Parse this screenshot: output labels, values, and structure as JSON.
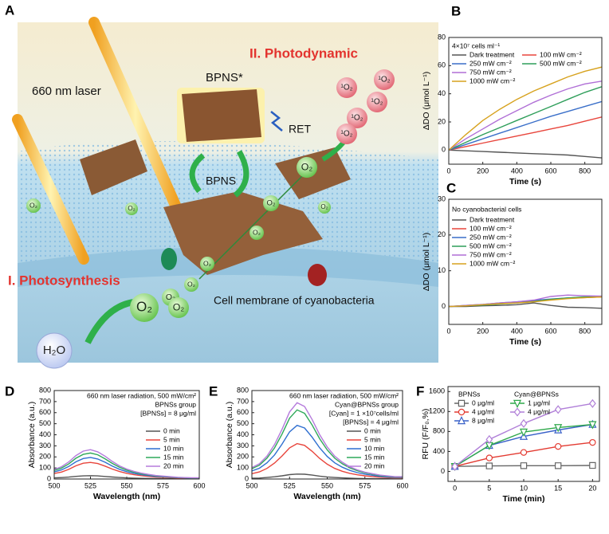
{
  "illustration": {
    "panel": "A",
    "title_photodynamic": "II. Photodynamic",
    "laser": "660 nm laser",
    "bpns_excited": "BPNS*",
    "ret": "RET",
    "bpns": "BPNS",
    "title_photosynthesis": "I. Photosynthesis",
    "membrane": "Cell membrane of cyanobacteria",
    "water": "H₂O",
    "oxygen": [
      "O₂",
      "O₂",
      "O₂",
      "O₂",
      "O₂",
      "O₂",
      "O₂",
      "O₂",
      "O₂",
      "O₂",
      "O₂"
    ],
    "singlet_oxygen": [
      "¹O₂",
      "¹O₂",
      "¹O₂",
      "¹O₂",
      "¹O₂"
    ]
  },
  "chart_data": [
    {
      "type": "line",
      "panel": "B",
      "xlabel": "Time (s)",
      "ylabel": "ΔDO (μmol L⁻¹)",
      "annotations": [
        "4×10⁷ cells ml⁻¹"
      ],
      "x": [
        0,
        100,
        200,
        300,
        400,
        500,
        600,
        700,
        800,
        900
      ],
      "xlim": [
        0,
        900
      ],
      "xticks": [
        0,
        200,
        400,
        600,
        800
      ],
      "ylim": [
        -10,
        80
      ],
      "yticks": [
        0,
        20,
        40,
        60,
        80
      ],
      "series": [
        {
          "name": "Dark treatment",
          "color": "#555555",
          "values": [
            0,
            -0.5,
            -1,
            -1.5,
            -2,
            -2.5,
            -3,
            -3.5,
            -4.5,
            -5.5
          ]
        },
        {
          "name": "100 mW cm⁻²",
          "color": "#e8453c",
          "values": [
            0,
            2.5,
            5,
            7.5,
            10,
            12.5,
            15,
            17.5,
            20.5,
            23.5
          ]
        },
        {
          "name": "250 mW cm⁻²",
          "color": "#3a6fc9",
          "values": [
            0,
            4,
            8,
            12,
            16,
            20,
            24,
            27.5,
            31,
            34.5
          ]
        },
        {
          "name": "500 mW cm⁻²",
          "color": "#2e9e5a",
          "values": [
            0,
            5.5,
            11,
            16,
            21,
            26,
            31,
            36,
            41,
            45
          ]
        },
        {
          "name": "750 mW cm⁻²",
          "color": "#b06fd6",
          "values": [
            0,
            8,
            15,
            22,
            28,
            34,
            39,
            43.5,
            47,
            49
          ]
        },
        {
          "name": "1000 mW cm⁻²",
          "color": "#d7a21e",
          "values": [
            0,
            11,
            21,
            29,
            36,
            42,
            47,
            52,
            56,
            59
          ]
        }
      ]
    },
    {
      "type": "line",
      "panel": "C",
      "xlabel": "Time (s)",
      "ylabel": "ΔDO (μmol L⁻¹)",
      "annotations": [
        "No cyanobacterial cells"
      ],
      "x": [
        0,
        100,
        200,
        300,
        400,
        500,
        600,
        700,
        800,
        900
      ],
      "xlim": [
        0,
        900
      ],
      "xticks": [
        0,
        200,
        400,
        600,
        800
      ],
      "ylim": [
        -5,
        30
      ],
      "yticks": [
        0,
        10,
        20,
        30
      ],
      "series": [
        {
          "name": "Dark treatment",
          "color": "#555555",
          "values": [
            0,
            0,
            0.2,
            0.3,
            0.5,
            1,
            0.3,
            -0.2,
            -0.3,
            -0.5
          ]
        },
        {
          "name": "100 mW cm⁻²",
          "color": "#e8453c",
          "values": [
            0,
            0.2,
            0.5,
            0.8,
            1.2,
            1.5,
            2,
            2.3,
            2.5,
            2.7
          ]
        },
        {
          "name": "250 mW cm⁻²",
          "color": "#3a6fc9",
          "values": [
            0,
            0.3,
            0.6,
            1,
            1.3,
            1.7,
            2.1,
            2.4,
            2.6,
            2.8
          ]
        },
        {
          "name": "500 mW cm⁻²",
          "color": "#2e9e5a",
          "values": [
            0,
            0.2,
            0.4,
            0.7,
            1,
            1.4,
            2,
            2.4,
            2.7,
            2.9
          ]
        },
        {
          "name": "750 mW cm⁻²",
          "color": "#b06fd6",
          "values": [
            0,
            0.3,
            0.6,
            1,
            1.3,
            1.8,
            2.8,
            3.2,
            3,
            2.9
          ]
        },
        {
          "name": "1000 mW cm⁻²",
          "color": "#d7a21e",
          "values": [
            0,
            0.2,
            0.5,
            0.8,
            1,
            1.3,
            1.8,
            2.2,
            2.5,
            2.7
          ]
        }
      ]
    },
    {
      "type": "line",
      "panel": "D",
      "xlabel": "Wavelength (nm)",
      "ylabel": "Absorbance (a.u.)",
      "annotations": [
        "660 nm laser radiation, 500 mW/cm²",
        "BPNSs group",
        "[BPNSs] = 8 μg/ml"
      ],
      "x": [
        500,
        505,
        510,
        515,
        520,
        525,
        530,
        535,
        540,
        545,
        550,
        555,
        560,
        565,
        570,
        575,
        580,
        585,
        590,
        595,
        600
      ],
      "xlim": [
        500,
        600
      ],
      "xticks": [
        500,
        525,
        550,
        575,
        600
      ],
      "ylim": [
        0,
        800
      ],
      "yticks": [
        0,
        100,
        200,
        300,
        400,
        500,
        600,
        700,
        800
      ],
      "series": [
        {
          "name": "0 min",
          "color": "#555555",
          "values": [
            10,
            13,
            17,
            24,
            28,
            30,
            28,
            23,
            18,
            14,
            10,
            8,
            6,
            5,
            4,
            3,
            2,
            2,
            2,
            1,
            1
          ]
        },
        {
          "name": "5 min",
          "color": "#e8453c",
          "values": [
            50,
            63,
            87,
            120,
            143,
            150,
            140,
            117,
            90,
            68,
            51,
            39,
            30,
            24,
            18,
            15,
            12,
            9,
            8,
            6,
            6
          ]
        },
        {
          "name": "10 min",
          "color": "#2f6fd0",
          "values": [
            64,
            82,
            113,
            156,
            185,
            195,
            181,
            152,
            117,
            88,
            66,
            51,
            39,
            31,
            23,
            20,
            16,
            12,
            10,
            8,
            8
          ]
        },
        {
          "name": "15 min",
          "color": "#2fa85a",
          "values": [
            78,
            99,
            136,
            188,
            223,
            235,
            219,
            183,
            141,
            106,
            80,
            61,
            47,
            38,
            28,
            24,
            19,
            14,
            12,
            9,
            9
          ]
        },
        {
          "name": "20 min",
          "color": "#b57bdc",
          "values": [
            87,
            111,
            154,
            212,
            252,
            265,
            246,
            207,
            159,
            119,
            90,
            69,
            53,
            42,
            32,
            27,
            21,
            16,
            13,
            11,
            11
          ]
        }
      ]
    },
    {
      "type": "line",
      "panel": "E",
      "xlabel": "Wavelength (nm)",
      "ylabel": "Absorbance (a.u.)",
      "annotations": [
        "660 nm laser radiation, 500 mW/cm²",
        "Cyan@BPNSs group",
        "[Cyan] = 1 ×10⁷cells/ml",
        "[BPNSs] = 4 μg/ml"
      ],
      "x": [
        500,
        505,
        510,
        515,
        520,
        525,
        530,
        535,
        540,
        545,
        550,
        555,
        560,
        565,
        570,
        575,
        580,
        585,
        590,
        595,
        600
      ],
      "xlim": [
        500,
        600
      ],
      "xticks": [
        500,
        525,
        550,
        575,
        600
      ],
      "ylim": [
        0,
        800
      ],
      "yticks": [
        0,
        100,
        200,
        300,
        400,
        500,
        600,
        700,
        800
      ],
      "series": [
        {
          "name": "0 min",
          "color": "#555555",
          "values": [
            7,
            9,
            14,
            20,
            29,
            40,
            45,
            43,
            35,
            26,
            19,
            14,
            10,
            7,
            5,
            4,
            3,
            2,
            2,
            1,
            1
          ]
        },
        {
          "name": "5 min",
          "color": "#e8453c",
          "values": [
            48,
            64,
            96,
            144,
            208,
            282,
            320,
            304,
            250,
            186,
            134,
            96,
            70,
            51,
            38,
            29,
            22,
            16,
            13,
            10,
            10
          ]
        },
        {
          "name": "10 min",
          "color": "#2f6fd0",
          "values": [
            73,
            97,
            146,
            218,
            315,
            427,
            485,
            461,
            378,
            281,
            204,
            146,
            107,
            78,
            58,
            44,
            34,
            24,
            19,
            15,
            15
          ]
        },
        {
          "name": "15 min",
          "color": "#2fa85a",
          "values": [
            94,
            125,
            188,
            281,
            406,
            550,
            625,
            594,
            488,
            363,
            263,
            188,
            138,
            100,
            75,
            56,
            44,
            31,
            25,
            19,
            19
          ]
        },
        {
          "name": "20 min",
          "color": "#b57bdc",
          "values": [
            104,
            138,
            207,
            311,
            449,
            607,
            690,
            656,
            538,
            400,
            290,
            207,
            152,
            110,
            83,
            62,
            48,
            35,
            28,
            21,
            21
          ]
        }
      ]
    },
    {
      "type": "line",
      "panel": "F",
      "xlabel": "Time (min)",
      "ylabel": "RFU (F/F₀,%)",
      "annotations": [],
      "x": [
        0,
        5,
        10,
        15,
        20
      ],
      "xlim": [
        -1,
        21
      ],
      "xticks": [
        0,
        5,
        10,
        15,
        20
      ],
      "ylim": [
        -200,
        1700
      ],
      "yticks": [
        0,
        400,
        800,
        1200,
        1600
      ],
      "series": [
        {
          "name": "0 μg/ml",
          "group": "BPNSs",
          "marker": "square",
          "color": "#666666",
          "values": [
            100,
            110,
            115,
            115,
            120
          ]
        },
        {
          "name": "4 μg/ml",
          "group": "BPNSs",
          "marker": "circle",
          "color": "#e33b32",
          "values": [
            100,
            270,
            380,
            500,
            580
          ]
        },
        {
          "name": "8 μg/ml",
          "group": "BPNSs",
          "marker": "triangle",
          "color": "#3a62c9",
          "values": [
            100,
            520,
            700,
            830,
            940
          ]
        },
        {
          "name": "1 μg/ml",
          "group": "Cyan@BPNSs",
          "marker": "triangle-down",
          "color": "#2ea84a",
          "values": [
            100,
            520,
            790,
            880,
            940
          ]
        },
        {
          "name": "4 μg/ml",
          "group": "Cyan@BPNSs",
          "marker": "diamond",
          "color": "#b07fd8",
          "values": [
            100,
            640,
            960,
            1240,
            1360
          ]
        }
      ]
    }
  ]
}
